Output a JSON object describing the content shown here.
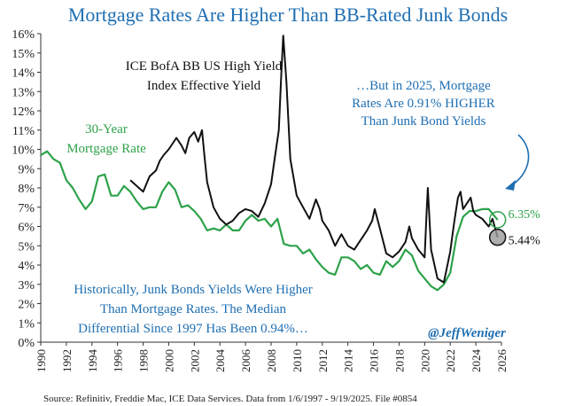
{
  "chart_data": {
    "type": "line",
    "title": "Mortgage Rates Are Higher Than BB-Rated Junk Bonds",
    "xlim": [
      1990,
      2026
    ],
    "ylim": [
      0,
      16
    ],
    "x_ticks": [
      "1990",
      "1992",
      "1994",
      "1996",
      "1998",
      "2000",
      "2002",
      "2004",
      "2006",
      "2008",
      "2010",
      "2012",
      "2014",
      "2016",
      "2018",
      "2020",
      "2022",
      "2024",
      "2026"
    ],
    "y_ticks": [
      "0%",
      "1%",
      "2%",
      "3%",
      "4%",
      "5%",
      "6%",
      "7%",
      "8%",
      "9%",
      "10%",
      "11%",
      "12%",
      "13%",
      "14%",
      "15%",
      "16%"
    ],
    "series": [
      {
        "name_lines": [
          "30-Year",
          "Mortgage Rate"
        ],
        "color": "#2ea24a",
        "x": [
          1990,
          1990.5,
          1991,
          1991.5,
          1992,
          1992.5,
          1993,
          1993.5,
          1994,
          1994.5,
          1995,
          1995.5,
          1996,
          1996.5,
          1997,
          1997.5,
          1998,
          1998.5,
          1999,
          1999.5,
          2000,
          2000.5,
          2001,
          2001.5,
          2002,
          2002.5,
          2003,
          2003.5,
          2004,
          2004.5,
          2005,
          2005.5,
          2006,
          2006.5,
          2007,
          2007.5,
          2008,
          2008.5,
          2009,
          2009.5,
          2010,
          2010.5,
          2011,
          2011.5,
          2012,
          2012.5,
          2013,
          2013.5,
          2014,
          2014.5,
          2015,
          2015.5,
          2016,
          2016.5,
          2017,
          2017.5,
          2018,
          2018.5,
          2019,
          2019.5,
          2020,
          2020.5,
          2021,
          2021.5,
          2022,
          2022.5,
          2023,
          2023.5,
          2024,
          2024.5,
          2025,
          2025.7
        ],
        "values": [
          9.7,
          9.9,
          9.5,
          9.3,
          8.4,
          8.0,
          7.4,
          6.9,
          7.3,
          8.6,
          8.7,
          7.6,
          7.6,
          8.1,
          7.8,
          7.3,
          6.9,
          7.0,
          7.0,
          7.8,
          8.3,
          7.9,
          7.0,
          7.1,
          6.8,
          6.4,
          5.8,
          5.9,
          5.8,
          6.1,
          5.8,
          5.8,
          6.3,
          6.6,
          6.3,
          6.4,
          6.0,
          6.4,
          5.1,
          5.0,
          5.0,
          4.6,
          4.8,
          4.3,
          3.9,
          3.6,
          3.5,
          4.4,
          4.4,
          4.2,
          3.8,
          4.0,
          3.6,
          3.5,
          4.2,
          3.9,
          4.2,
          4.8,
          4.5,
          3.7,
          3.3,
          2.9,
          2.7,
          3.0,
          3.6,
          5.5,
          6.5,
          6.8,
          6.8,
          6.9,
          6.9,
          6.35
        ]
      },
      {
        "name_lines": [
          "ICE BofA BB US High Yield",
          "Index Effective Yield"
        ],
        "color": "#111111",
        "x": [
          1997,
          1997.5,
          1998,
          1998.5,
          1999,
          1999.3,
          1999.6,
          2000,
          2000.3,
          2000.6,
          2001,
          2001.3,
          2001.6,
          2002,
          2002.3,
          2002.6,
          2002.8,
          2003,
          2003.5,
          2004,
          2004.5,
          2005,
          2005.5,
          2006,
          2006.5,
          2007,
          2007.5,
          2008,
          2008.3,
          2008.6,
          2008.8,
          2008.95,
          2009.2,
          2009.5,
          2010,
          2010.5,
          2011,
          2011.5,
          2011.8,
          2012,
          2012.5,
          2013,
          2013.5,
          2014,
          2014.5,
          2015,
          2015.5,
          2015.9,
          2016.1,
          2016.5,
          2017,
          2017.5,
          2018,
          2018.5,
          2018.8,
          2019,
          2019.5,
          2020,
          2020.15,
          2020.25,
          2020.5,
          2021,
          2021.5,
          2022,
          2022.3,
          2022.6,
          2022.8,
          2023,
          2023.3,
          2023.6,
          2023.8,
          2024,
          2024.5,
          2025,
          2025.3,
          2025.7
        ],
        "values": [
          8.4,
          8.1,
          7.8,
          8.6,
          8.9,
          9.4,
          9.7,
          10.0,
          10.3,
          10.6,
          10.2,
          9.8,
          10.6,
          10.9,
          10.4,
          11.0,
          9.6,
          8.3,
          7.0,
          6.4,
          6.1,
          6.3,
          6.7,
          6.9,
          6.8,
          6.5,
          7.2,
          8.2,
          9.6,
          11.0,
          14.0,
          15.9,
          13.5,
          9.5,
          7.6,
          7.0,
          6.4,
          7.4,
          6.9,
          6.3,
          5.8,
          5.0,
          5.6,
          5.0,
          4.8,
          5.3,
          5.8,
          6.3,
          6.9,
          5.9,
          4.6,
          4.4,
          4.7,
          5.2,
          6.0,
          5.4,
          4.8,
          4.4,
          6.7,
          8.0,
          4.8,
          3.3,
          3.1,
          4.7,
          6.2,
          7.5,
          7.8,
          6.9,
          7.2,
          7.5,
          6.8,
          6.6,
          6.4,
          6.0,
          6.4,
          5.44
        ]
      }
    ],
    "end_labels": [
      "6.35%",
      "5.44%"
    ],
    "annotations": {
      "top_right": [
        "…But in 2025, Mortgage",
        "Rates Are 0.91% HIGHER",
        "Than Junk Bond Yields"
      ],
      "bottom_left": [
        "Historically, Junk Bonds Yields Were Higher",
        "Than Mortgage Rates. The Median",
        "Differential Since 1997 Has Been 0.94%…"
      ]
    },
    "grid": false
  },
  "handle": "@JeffWeniger",
  "source": "Source: Refinitiv, Freddie Mac, ICE Data Services. Data from 1/6/1997 - 9/19/2025. File #0854"
}
